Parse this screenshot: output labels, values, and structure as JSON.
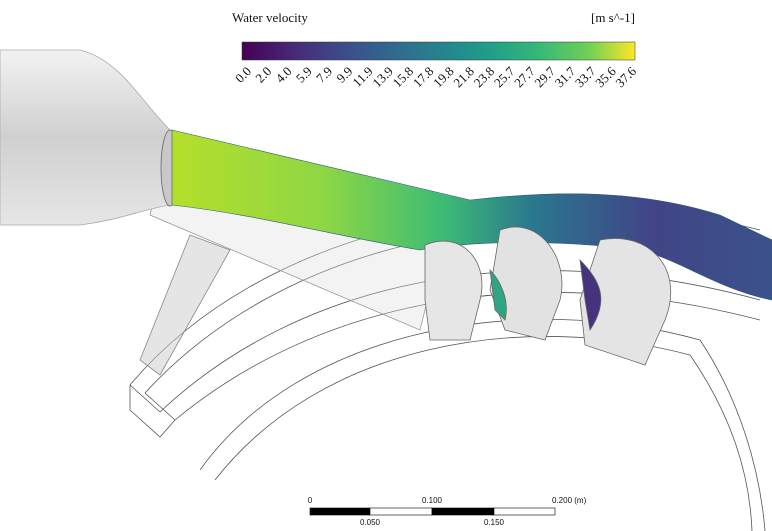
{
  "colorbar": {
    "title": "Water velocity",
    "unit": "[m s^-1]",
    "ticks": [
      "0.0",
      "2.0",
      "4.0",
      "5.9",
      "7.9",
      "9.9",
      "11.9",
      "13.9",
      "15.8",
      "17.8",
      "19.8",
      "21.8",
      "23.8",
      "25.7",
      "27.7",
      "29.7",
      "31.7",
      "33.7",
      "35.6",
      "37.6"
    ]
  },
  "scale_bar": {
    "top_labels": [
      "0",
      "0.100",
      "0.200 (m)"
    ],
    "bottom_labels": [
      "0.050",
      "0.150"
    ]
  }
}
